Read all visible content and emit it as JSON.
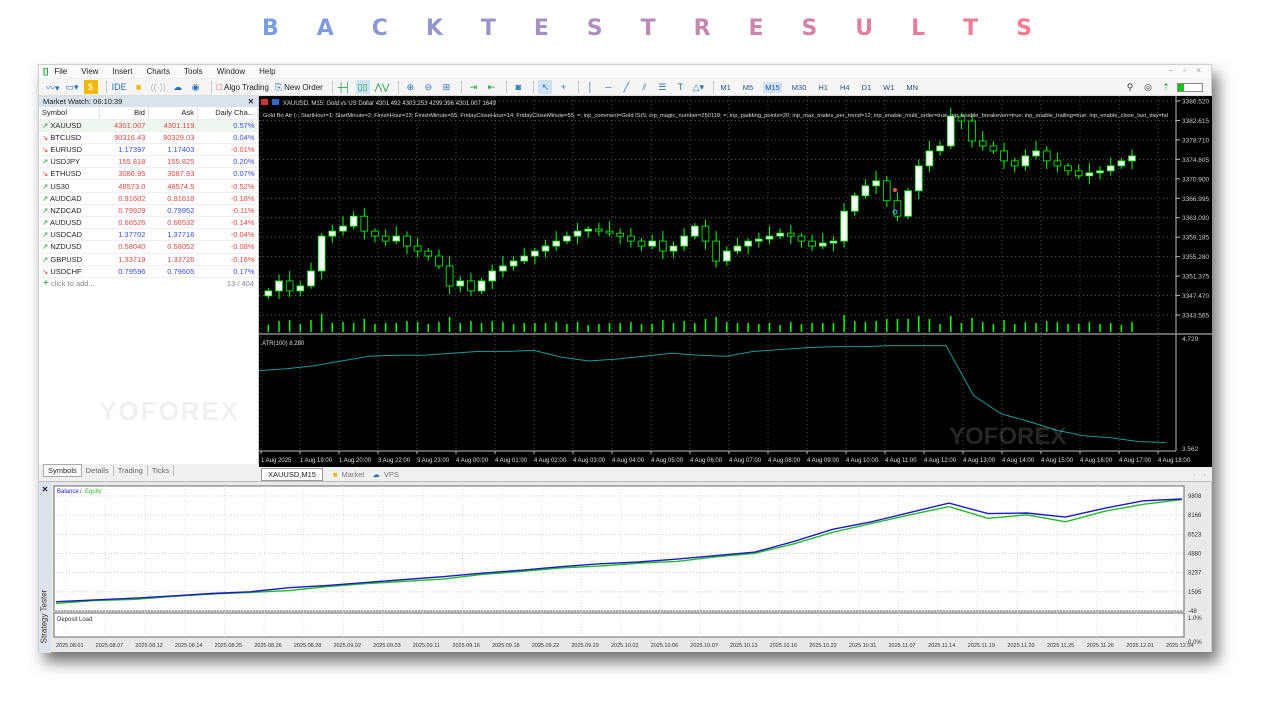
{
  "title_letters": [
    "B",
    "A",
    "C",
    "K",
    "T",
    "E",
    "S",
    "T",
    "R",
    "E",
    "S",
    "U",
    "L",
    "T",
    "S"
  ],
  "title_colors": [
    "#7b9ee0",
    "#f77a90"
  ],
  "menu": [
    "File",
    "View",
    "Insert",
    "Charts",
    "Tools",
    "Window",
    "Help"
  ],
  "window_controls": "– ▫ ×",
  "toolbar": {
    "algo_trading": "Algo Trading",
    "new_order": "New Order",
    "ide": "IDE",
    "timeframes": [
      "M1",
      "M5",
      "M15",
      "M30",
      "H1",
      "H4",
      "D1",
      "W1",
      "MN"
    ],
    "selected_timeframe": "M15"
  },
  "market_watch": {
    "title": "Market Watch: 06:10:39",
    "columns": [
      "Symbol",
      "Bid",
      "Ask",
      "Daily Cha..."
    ],
    "rows": [
      {
        "symbol": "XAUUSD",
        "dir": "up",
        "bid": "4301.007",
        "ask": "4301.119",
        "change": "0.57%",
        "bc": "red",
        "ac": "red",
        "cc": "blue"
      },
      {
        "symbol": "BTCUSD",
        "dir": "dn",
        "bid": "90316.43",
        "ask": "90329.03",
        "change": "0.04%",
        "bc": "red",
        "ac": "red",
        "cc": "blue"
      },
      {
        "symbol": "EURUSD",
        "dir": "dn",
        "bid": "1.17397",
        "ask": "1.17403",
        "change": "-0.01%",
        "bc": "blue",
        "ac": "blue",
        "cc": "red"
      },
      {
        "symbol": "USDJPY",
        "dir": "up",
        "bid": "155.818",
        "ask": "155.825",
        "change": "0.20%",
        "bc": "red",
        "ac": "red",
        "cc": "blue"
      },
      {
        "symbol": "ETHUSD",
        "dir": "dn",
        "bid": "3086.95",
        "ask": "3087.93",
        "change": "0.07%",
        "bc": "red",
        "ac": "red",
        "cc": "blue"
      },
      {
        "symbol": "US30",
        "dir": "up",
        "bid": "48573.0",
        "ask": "48574.5",
        "change": "-0.52%",
        "bc": "red",
        "ac": "red",
        "cc": "red"
      },
      {
        "symbol": "AUDCAD",
        "dir": "up",
        "bid": "0.91602",
        "ask": "0.91618",
        "change": "-0.18%",
        "bc": "red",
        "ac": "red",
        "cc": "red"
      },
      {
        "symbol": "NZDCAD",
        "dir": "up",
        "bid": "0.79929",
        "ask": "0.79952",
        "change": "-0.11%",
        "bc": "red",
        "ac": "blue",
        "cc": "red"
      },
      {
        "symbol": "AUDUSD",
        "dir": "up",
        "bid": "0.66526",
        "ask": "0.66532",
        "change": "-0.14%",
        "bc": "red",
        "ac": "red",
        "cc": "red"
      },
      {
        "symbol": "USDCAD",
        "dir": "up",
        "bid": "1.37702",
        "ask": "1.37716",
        "change": "-0.04%",
        "bc": "blue",
        "ac": "blue",
        "cc": "red"
      },
      {
        "symbol": "NZDUSD",
        "dir": "up",
        "bid": "0.58040",
        "ask": "0.58052",
        "change": "-0.08%",
        "bc": "red",
        "ac": "red",
        "cc": "red"
      },
      {
        "symbol": "GBPUSD",
        "dir": "up",
        "bid": "1.33719",
        "ask": "1.33726",
        "change": "-0.16%",
        "bc": "red",
        "ac": "red",
        "cc": "red"
      },
      {
        "symbol": "USDCHF",
        "dir": "dn",
        "bid": "0.79596",
        "ask": "0.79605",
        "change": "0.17%",
        "bc": "blue",
        "ac": "blue",
        "cc": "blue"
      }
    ],
    "add_label": "click to add...",
    "count": "13 / 404",
    "tabs": [
      "Symbols",
      "Details",
      "Trading",
      "Ticks"
    ]
  },
  "chart": {
    "header": "XAUUSD, M15:  Gold vs US Dollar  4301.492 4303.253 4299.396 4301.007  1649",
    "ea_params": "Gold Bo Atr (-; StartHour=1; StartMinute=2; FinishHour=23; FinishMinute=55; FridayCloseHour=14; FridayCloseMinute=55; =; inp_comment=Gold ISIS; inp_magic_number=250118; =; inp_padding_points=20; inp_max_trades_per_trend=12; inp_enable_multi_order=true; inp_enable_breakeven=true; inp_enable_trailing=true; inp_enable_close_last_day=fal",
    "price_ticks": [
      "3386.520",
      "3382.615",
      "3378.710",
      "3374.805",
      "3370.900",
      "3366.995",
      "3363.090",
      "3359.185",
      "3355.280",
      "3351.375",
      "3347.470",
      "3343.565"
    ],
    "price_range": [
      3343.565,
      3386.52
    ],
    "closes": [
      3348.4,
      3350.4,
      3348.4,
      3349.4,
      3352.4,
      3359.4,
      3360.4,
      3361.4,
      3363.4,
      3360.4,
      3359.4,
      3358.4,
      3359.4,
      3357.4,
      3356.4,
      3355.4,
      3353.4,
      3349.4,
      3350.4,
      3348.4,
      3350.4,
      3352.4,
      3353.4,
      3354.4,
      3355.4,
      3356.4,
      3357.4,
      3358.4,
      3359.4,
      3360.4,
      3360.8,
      3360.4,
      3360.0,
      3359.4,
      3358.4,
      3357.4,
      3358.4,
      3356.4,
      3357.4,
      3359.4,
      3361.4,
      3358.4,
      3354.4,
      3356.4,
      3357.4,
      3358.4,
      3358.8,
      3359.4,
      3360.0,
      3359.4,
      3358.4,
      3357.4,
      3358.0,
      3358.4,
      3364.4,
      3367.5,
      3369.5,
      3370.5,
      3366.5,
      3363.4,
      3368.5,
      3373.5,
      3376.5,
      3377.5,
      3383.5,
      3382.5,
      3378.5,
      3377.5,
      3376.5,
      3374.5,
      3373.5,
      3375.5,
      3376.5,
      3374.5,
      3373.5,
      3372.5,
      3371.5,
      3372.1,
      3372.5,
      3373.5,
      3374.5,
      3375.5
    ],
    "atr_label": "ATR(100) 8.280",
    "atr_ticks": [
      "4.729",
      "3.562"
    ],
    "atr_range": [
      3.562,
      4.729
    ],
    "atr_values": [
      4.4,
      4.42,
      4.45,
      4.5,
      4.55,
      4.56,
      4.56,
      4.58,
      4.6,
      4.6,
      4.61,
      4.54,
      4.5,
      4.52,
      4.55,
      4.58,
      4.56,
      4.55,
      4.6,
      4.62,
      4.64,
      4.65,
      4.65,
      4.66,
      4.66,
      4.66,
      4.14,
      3.95,
      3.87,
      3.78,
      3.72,
      3.7,
      3.66,
      3.65
    ],
    "time_labels": [
      "1 Aug 2025",
      "1 Aug 19:00",
      "1 Aug 20:00",
      "3 Aug 22:00",
      "3 Aug 23:00",
      "4 Aug 00:00",
      "4 Aug 01:00",
      "4 Aug 02:00",
      "4 Aug 03:00",
      "4 Aug 04:00",
      "4 Aug 05:00",
      "4 Aug 06:00",
      "4 Aug 07:00",
      "4 Aug 08:00",
      "4 Aug 09:00",
      "4 Aug 10:00",
      "4 Aug 11:00",
      "4 Aug 12:00",
      "4 Aug 13:00",
      "4 Aug 14:00",
      "4 Aug 15:00",
      "4 Aug 16:00",
      "4 Aug 17:00",
      "4 Aug 18:00"
    ],
    "tabs": [
      "XAUUSD,M15",
      "Market",
      "VPS"
    ],
    "colors": {
      "bg": "#000000",
      "candle": "#00ff00",
      "atr": "#1a9a9a"
    }
  },
  "watermark": "YOFOREX",
  "tester": {
    "label": "Strategy Tester",
    "legend_balance": "Balance",
    "legend_equity": "Equity",
    "deposit_label": "Deposit Load",
    "y_ticks": [
      "9808",
      "8166",
      "6523",
      "4880",
      "3237",
      "1595",
      "-48"
    ],
    "y_range": [
      -48,
      9808
    ],
    "deposit_ticks": [
      "1.0%",
      "0.0%"
    ],
    "dates": [
      "2025.08.01",
      "2025.08.07",
      "2025.08.12",
      "2025.08.14",
      "2025.08.25",
      "2025.08.26",
      "2025.08.28",
      "2025.09.02",
      "2025.09.03",
      "2025.09.11",
      "2025.09.16",
      "2025.09.18",
      "2025.09.22",
      "2025.09.29",
      "2025.10.02",
      "2025.10.06",
      "2025.10.07",
      "2025.10.13",
      "2025.10.16",
      "2025.10.22",
      "2025.10.31",
      "2025.11.07",
      "2025.11.14",
      "2025.11.19",
      "2025.11.20",
      "2025.11.25",
      "2025.11.26",
      "2025.12.01",
      "2025.12.04"
    ],
    "balance": [
      745,
      900,
      1050,
      1250,
      1450,
      1600,
      1950,
      2150,
      2400,
      2650,
      2900,
      3200,
      3450,
      3750,
      4000,
      4150,
      4400,
      4700,
      5000,
      5900,
      6950,
      7600,
      8400,
      9200,
      8300,
      8350,
      8000,
      8750,
      9400,
      9550
    ],
    "equity": [
      600,
      850,
      950,
      1200,
      1400,
      1550,
      1700,
      2050,
      2300,
      2500,
      2700,
      3100,
      3350,
      3650,
      3800,
      4050,
      4200,
      4600,
      4900,
      5700,
      6700,
      7450,
      8200,
      8900,
      7900,
      8200,
      7600,
      8500,
      9100,
      9500
    ],
    "colors": {
      "balance": "#1a1acc",
      "equity": "#22bb22"
    }
  }
}
